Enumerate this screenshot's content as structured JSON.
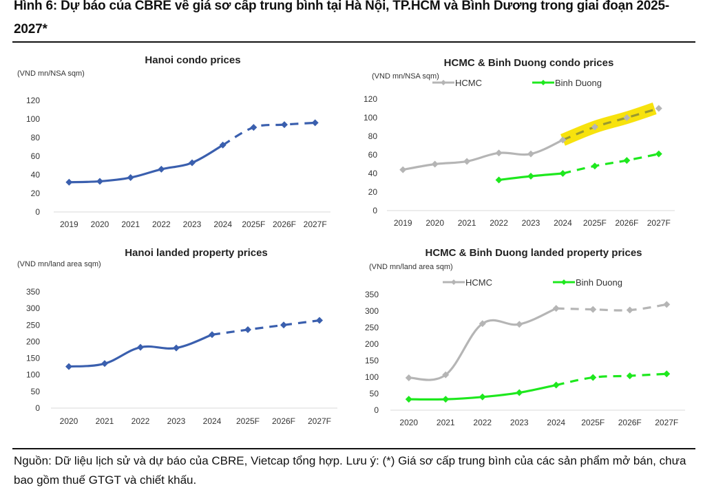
{
  "figure": {
    "title": "Hình 6: Dự báo của CBRE về giá sơ cấp trung bình tại Hà Nội, TP.HCM và Bình Dương trong giai đoạn 2025-2027*",
    "footnote": "Nguồn: Dữ liệu lịch sử và dự báo của CBRE, Vietcap tổng hợp. Lưu ý: (*) Giá sơ cấp trung bình của các sản phẩm mở bán, chưa bao gồm thuế GTGT và chiết khấu."
  },
  "colors": {
    "hanoi": "#3a5fae",
    "hcmc": "#b5b5b5",
    "binh_duong": "#1ee81e",
    "highlight": "#f7e000"
  },
  "chart_data": [
    {
      "type": "line",
      "title": "Hanoi condo prices",
      "ylabel": "(VND mn/NSA sqm)",
      "xlabel": "",
      "categories": [
        "2019",
        "2020",
        "2021",
        "2022",
        "2023",
        "2024",
        "2025F",
        "2026F",
        "2027F"
      ],
      "yticks": [
        "0",
        "20",
        "40",
        "60",
        "80",
        "100",
        "120"
      ],
      "ylim": [
        0,
        120
      ],
      "forecast_from_index": 5,
      "legend": null,
      "series": [
        {
          "name": "Hanoi",
          "color_key": "hanoi",
          "values": [
            32,
            33,
            37,
            46,
            53,
            72,
            91,
            94,
            96
          ]
        }
      ]
    },
    {
      "type": "line",
      "title": "HCMC & Binh Duong condo prices",
      "ylabel": "(VND mn/NSA sqm)",
      "xlabel": "",
      "categories": [
        "2019",
        "2020",
        "2021",
        "2022",
        "2023",
        "2024",
        "2025F",
        "2026F",
        "2027F"
      ],
      "yticks": [
        "0",
        "20",
        "40",
        "60",
        "80",
        "100",
        "120"
      ],
      "ylim": [
        0,
        120
      ],
      "forecast_from_index": 5,
      "legend": "top",
      "highlight": {
        "series": "HCMC",
        "from": "2024",
        "to": "2027F",
        "annotation": "yellow highlighter mark"
      },
      "series": [
        {
          "name": "HCMC",
          "color_key": "hcmc",
          "values": [
            44,
            50,
            53,
            62,
            61,
            76,
            90,
            100,
            110
          ]
        },
        {
          "name": "Binh Duong",
          "color_key": "binh_duong",
          "values": [
            null,
            null,
            null,
            33,
            37,
            40,
            48,
            54,
            61
          ]
        }
      ]
    },
    {
      "type": "line",
      "title": "Hanoi landed property prices",
      "ylabel": "(VND mn/land area sqm)",
      "xlabel": "",
      "categories": [
        "2020",
        "2021",
        "2022",
        "2023",
        "2024",
        "2025F",
        "2026F",
        "2027F"
      ],
      "yticks": [
        "0",
        "50",
        "100",
        "150",
        "200",
        "250",
        "300",
        "350"
      ],
      "ylim": [
        0,
        350
      ],
      "forecast_from_index": 4,
      "legend": null,
      "series": [
        {
          "name": "Hanoi",
          "color_key": "hanoi",
          "values": [
            125,
            134,
            183,
            181,
            221,
            236,
            250,
            264
          ]
        }
      ]
    },
    {
      "type": "line",
      "title": "HCMC & Binh Duong landed property prices",
      "ylabel": "(VND mn/land area sqm)",
      "xlabel": "",
      "categories": [
        "2020",
        "2021",
        "2022",
        "2023",
        "2024",
        "2025F",
        "2026F",
        "2027F"
      ],
      "yticks": [
        "0",
        "50",
        "100",
        "150",
        "200",
        "250",
        "300",
        "350"
      ],
      "ylim": [
        0,
        350
      ],
      "forecast_from_index": 4,
      "legend": "top",
      "series": [
        {
          "name": "HCMC",
          "color_key": "hcmc",
          "values": [
            98,
            107,
            262,
            260,
            308,
            305,
            303,
            320
          ]
        },
        {
          "name": "Binh Duong",
          "color_key": "binh_duong",
          "values": [
            33,
            33,
            40,
            53,
            76,
            99,
            104,
            110
          ]
        }
      ]
    }
  ]
}
